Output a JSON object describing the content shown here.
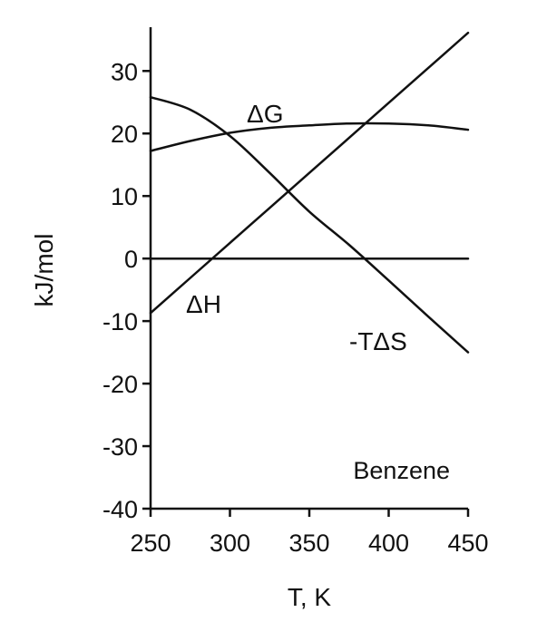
{
  "chart_data": {
    "type": "line",
    "title": "",
    "xlabel": "T, K",
    "ylabel": "kJ/mol",
    "xlim": [
      250,
      450
    ],
    "ylim": [
      -40,
      37
    ],
    "xticks": [
      250,
      300,
      350,
      400,
      450
    ],
    "yticks": [
      30,
      20,
      10,
      0,
      -10,
      -20,
      -30,
      -40
    ],
    "xtick_labels": [
      "250",
      "300",
      "350",
      "400",
      "450"
    ],
    "ytick_labels": [
      "30",
      "20",
      "10",
      "0",
      "-10",
      "-20",
      "-30",
      "-40"
    ],
    "grid": false,
    "legend": "none",
    "annotation": "Benzene",
    "series": [
      {
        "name": "ΔG",
        "x": [
          250,
          275,
          300,
          325,
          350,
          375,
          400,
          425,
          450
        ],
        "y": [
          17.2,
          18.8,
          20.1,
          20.9,
          21.3,
          21.6,
          21.6,
          21.3,
          20.6
        ]
      },
      {
        "name": "ΔH",
        "x": [
          250,
          275,
          300,
          325,
          350,
          375,
          400,
          425,
          450
        ],
        "y": [
          -8.7,
          -3.1,
          2.5,
          8.1,
          13.7,
          19.3,
          24.9,
          30.5,
          36.1
        ]
      },
      {
        "name": "-TΔS",
        "x": [
          250,
          275,
          300,
          325,
          350,
          375,
          400,
          425,
          450
        ],
        "y": [
          25.8,
          23.8,
          19.6,
          13.7,
          7.5,
          2.2,
          -3.5,
          -9.3,
          -15.0
        ]
      },
      {
        "name": "",
        "x": [
          250,
          450
        ],
        "y": [
          0,
          0
        ]
      }
    ]
  }
}
